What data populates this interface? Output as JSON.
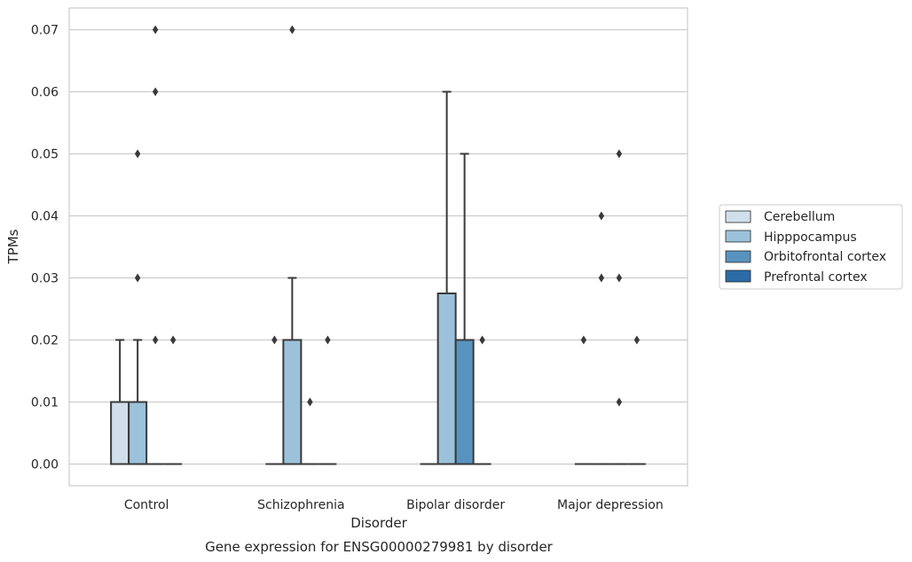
{
  "chart_data": {
    "type": "box",
    "title": "Gene expression for ENSG00000279981 by disorder",
    "xlabel": "Disorder",
    "ylabel": "TPMs",
    "ylim": [
      -0.0035,
      0.0735
    ],
    "yticks": [
      0.0,
      0.01,
      0.02,
      0.03,
      0.04,
      0.05,
      0.06,
      0.07
    ],
    "ytick_labels": [
      "0.00",
      "0.01",
      "0.02",
      "0.03",
      "0.04",
      "0.05",
      "0.06",
      "0.07"
    ],
    "grid": "horizontal",
    "legend_position": "right",
    "categories": [
      "Control",
      "Schizophrenia",
      "Bipolar disorder",
      "Major depression"
    ],
    "series": [
      {
        "name": "Cerebellum",
        "color": "#d1dfec",
        "boxes": [
          {
            "q1": 0.0,
            "median": 0.0,
            "q3": 0.01,
            "whisker_low": 0.0,
            "whisker_high": 0.02,
            "outliers": []
          },
          {
            "q1": 0.0,
            "median": 0.0,
            "q3": 0.0,
            "whisker_low": 0.0,
            "whisker_high": 0.0,
            "outliers": [
              0.02
            ]
          },
          {
            "q1": 0.0,
            "median": 0.0,
            "q3": 0.0,
            "whisker_low": 0.0,
            "whisker_high": 0.0,
            "outliers": []
          },
          {
            "q1": 0.0,
            "median": 0.0,
            "q3": 0.0,
            "whisker_low": 0.0,
            "whisker_high": 0.0,
            "outliers": [
              0.02
            ]
          }
        ]
      },
      {
        "name": "Hipppocampus",
        "color": "#9cc2db",
        "boxes": [
          {
            "q1": 0.0,
            "median": 0.0,
            "q3": 0.01,
            "whisker_low": 0.0,
            "whisker_high": 0.02,
            "outliers": [
              0.03,
              0.05
            ]
          },
          {
            "q1": 0.0,
            "median": 0.0,
            "q3": 0.02,
            "whisker_low": 0.0,
            "whisker_high": 0.03,
            "outliers": [
              0.07
            ]
          },
          {
            "q1": 0.0,
            "median": 0.0,
            "q3": 0.0275,
            "whisker_low": 0.0,
            "whisker_high": 0.06,
            "outliers": []
          },
          {
            "q1": 0.0,
            "median": 0.0,
            "q3": 0.0,
            "whisker_low": 0.0,
            "whisker_high": 0.0,
            "outliers": [
              0.03,
              0.04
            ]
          }
        ]
      },
      {
        "name": "Orbitofrontal cortex",
        "color": "#5893bf",
        "boxes": [
          {
            "q1": 0.0,
            "median": 0.0,
            "q3": 0.0,
            "whisker_low": 0.0,
            "whisker_high": 0.0,
            "outliers": [
              0.02,
              0.06,
              0.07
            ]
          },
          {
            "q1": 0.0,
            "median": 0.0,
            "q3": 0.0,
            "whisker_low": 0.0,
            "whisker_high": 0.0,
            "outliers": [
              0.01
            ]
          },
          {
            "q1": 0.0,
            "median": 0.0,
            "q3": 0.02,
            "whisker_low": 0.0,
            "whisker_high": 0.05,
            "outliers": []
          },
          {
            "q1": 0.0,
            "median": 0.0,
            "q3": 0.0,
            "whisker_low": 0.0,
            "whisker_high": 0.0,
            "outliers": [
              0.01,
              0.03,
              0.05
            ]
          }
        ]
      },
      {
        "name": "Prefrontal cortex",
        "color": "#2b6ca7",
        "boxes": [
          {
            "q1": 0.0,
            "median": 0.0,
            "q3": 0.0,
            "whisker_low": 0.0,
            "whisker_high": 0.0,
            "outliers": [
              0.02
            ]
          },
          {
            "q1": 0.0,
            "median": 0.0,
            "q3": 0.0,
            "whisker_low": 0.0,
            "whisker_high": 0.0,
            "outliers": [
              0.02
            ]
          },
          {
            "q1": 0.0,
            "median": 0.0,
            "q3": 0.0,
            "whisker_low": 0.0,
            "whisker_high": 0.0,
            "outliers": [
              0.02
            ]
          },
          {
            "q1": 0.0,
            "median": 0.0,
            "q3": 0.0,
            "whisker_low": 0.0,
            "whisker_high": 0.0,
            "outliers": [
              0.02
            ]
          }
        ]
      }
    ],
    "line_color": "#3a3a3a",
    "grid_color": "#cccccc",
    "frame_color": "#cccccc"
  }
}
